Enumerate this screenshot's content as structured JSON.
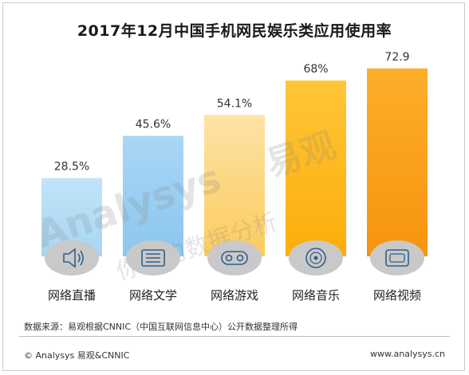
{
  "title": "2017年12月中国手机网民娱乐类应用使用率",
  "source": "数据来源：易观根据CNNIC（中国互联网信息中心）公开数据整理所得",
  "footer": {
    "copyright": "© Analysys 易观&CNNIC",
    "url": "www.analysys.cn"
  },
  "watermark": "Analysys 易观 你要的数据分析",
  "chart_data": {
    "type": "bar",
    "title": "2017年12月中国手机网民娱乐类应用使用率",
    "categories": [
      "网络直播",
      "网络文学",
      "网络游戏",
      "网络音乐",
      "网络视频"
    ],
    "values": [
      28.5,
      45.6,
      54.1,
      68,
      72.9
    ],
    "data_labels": [
      "28.5%",
      "45.6%",
      "54.1%",
      "68%",
      "72.9"
    ],
    "ylim": [
      0,
      75
    ],
    "grid": false,
    "colors": [
      "#b3dcf5",
      "#9dcff2",
      "#fcd88c",
      "#fdb813",
      "#fba31a"
    ],
    "icons": [
      "speaker-icon",
      "book-icon",
      "gamepad-icon",
      "disc-icon",
      "tv-icon"
    ]
  }
}
